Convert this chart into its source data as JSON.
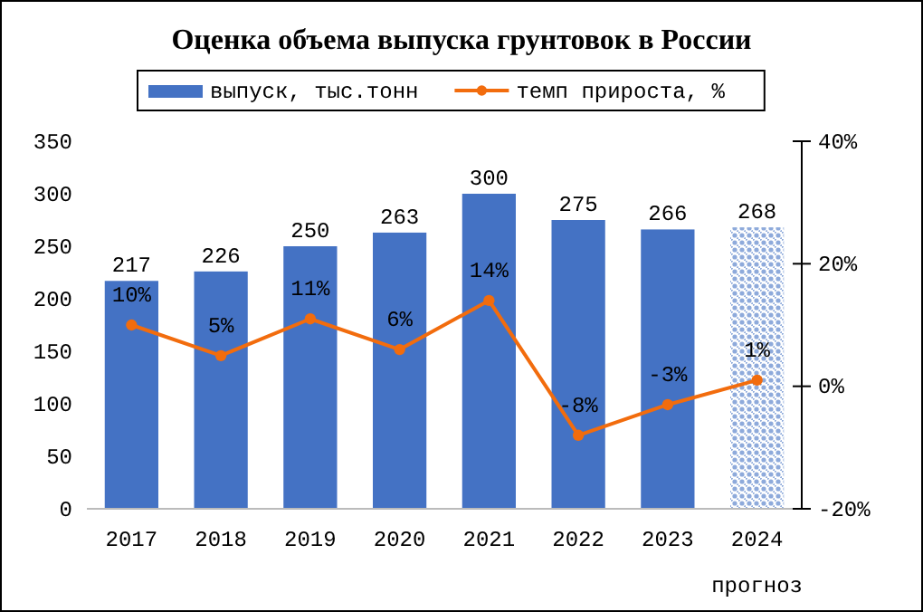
{
  "chart_data": {
    "type": "bar",
    "title": "Оценка объема выпуска грунтовок в России",
    "categories": [
      "2017",
      "2018",
      "2019",
      "2020",
      "2021",
      "2022",
      "2023",
      "2024"
    ],
    "series": [
      {
        "name": "выпуск, тыс.тонн",
        "color": "#4472c4",
        "colors": [
          "#4472c4",
          "#4472c4",
          "#4472c4",
          "#4472c4",
          "#4472c4",
          "#4472c4",
          "#4472c4",
          "#8eaadb"
        ],
        "values": [
          217,
          226,
          250,
          263,
          300,
          275,
          266,
          268
        ],
        "value_labels": [
          "217",
          "226",
          "250",
          "263",
          "300",
          "275",
          "266",
          "268"
        ]
      },
      {
        "name": "темп прироста, %",
        "type": "line",
        "axis": "y2",
        "color": "#f26c0d",
        "marker": "circle",
        "values": [
          10,
          5,
          11,
          6,
          14,
          -8,
          -3,
          1
        ],
        "value_labels": [
          "10%",
          "5%",
          "11%",
          "6%",
          "14%",
          "-8%",
          "-3%",
          "1%"
        ]
      }
    ],
    "ylim": [
      0,
      350
    ],
    "yticks": [
      0,
      50,
      100,
      150,
      200,
      250,
      300,
      350
    ],
    "y2lim": [
      -20,
      40
    ],
    "y2ticks": [
      {
        "value": -20,
        "label": "-20%"
      },
      {
        "value": 0,
        "label": "0%"
      },
      {
        "value": 20,
        "label": "20%"
      },
      {
        "value": 40,
        "label": "40%"
      }
    ],
    "legend": "top",
    "grid": false,
    "annotations": [
      "прогноз"
    ]
  }
}
